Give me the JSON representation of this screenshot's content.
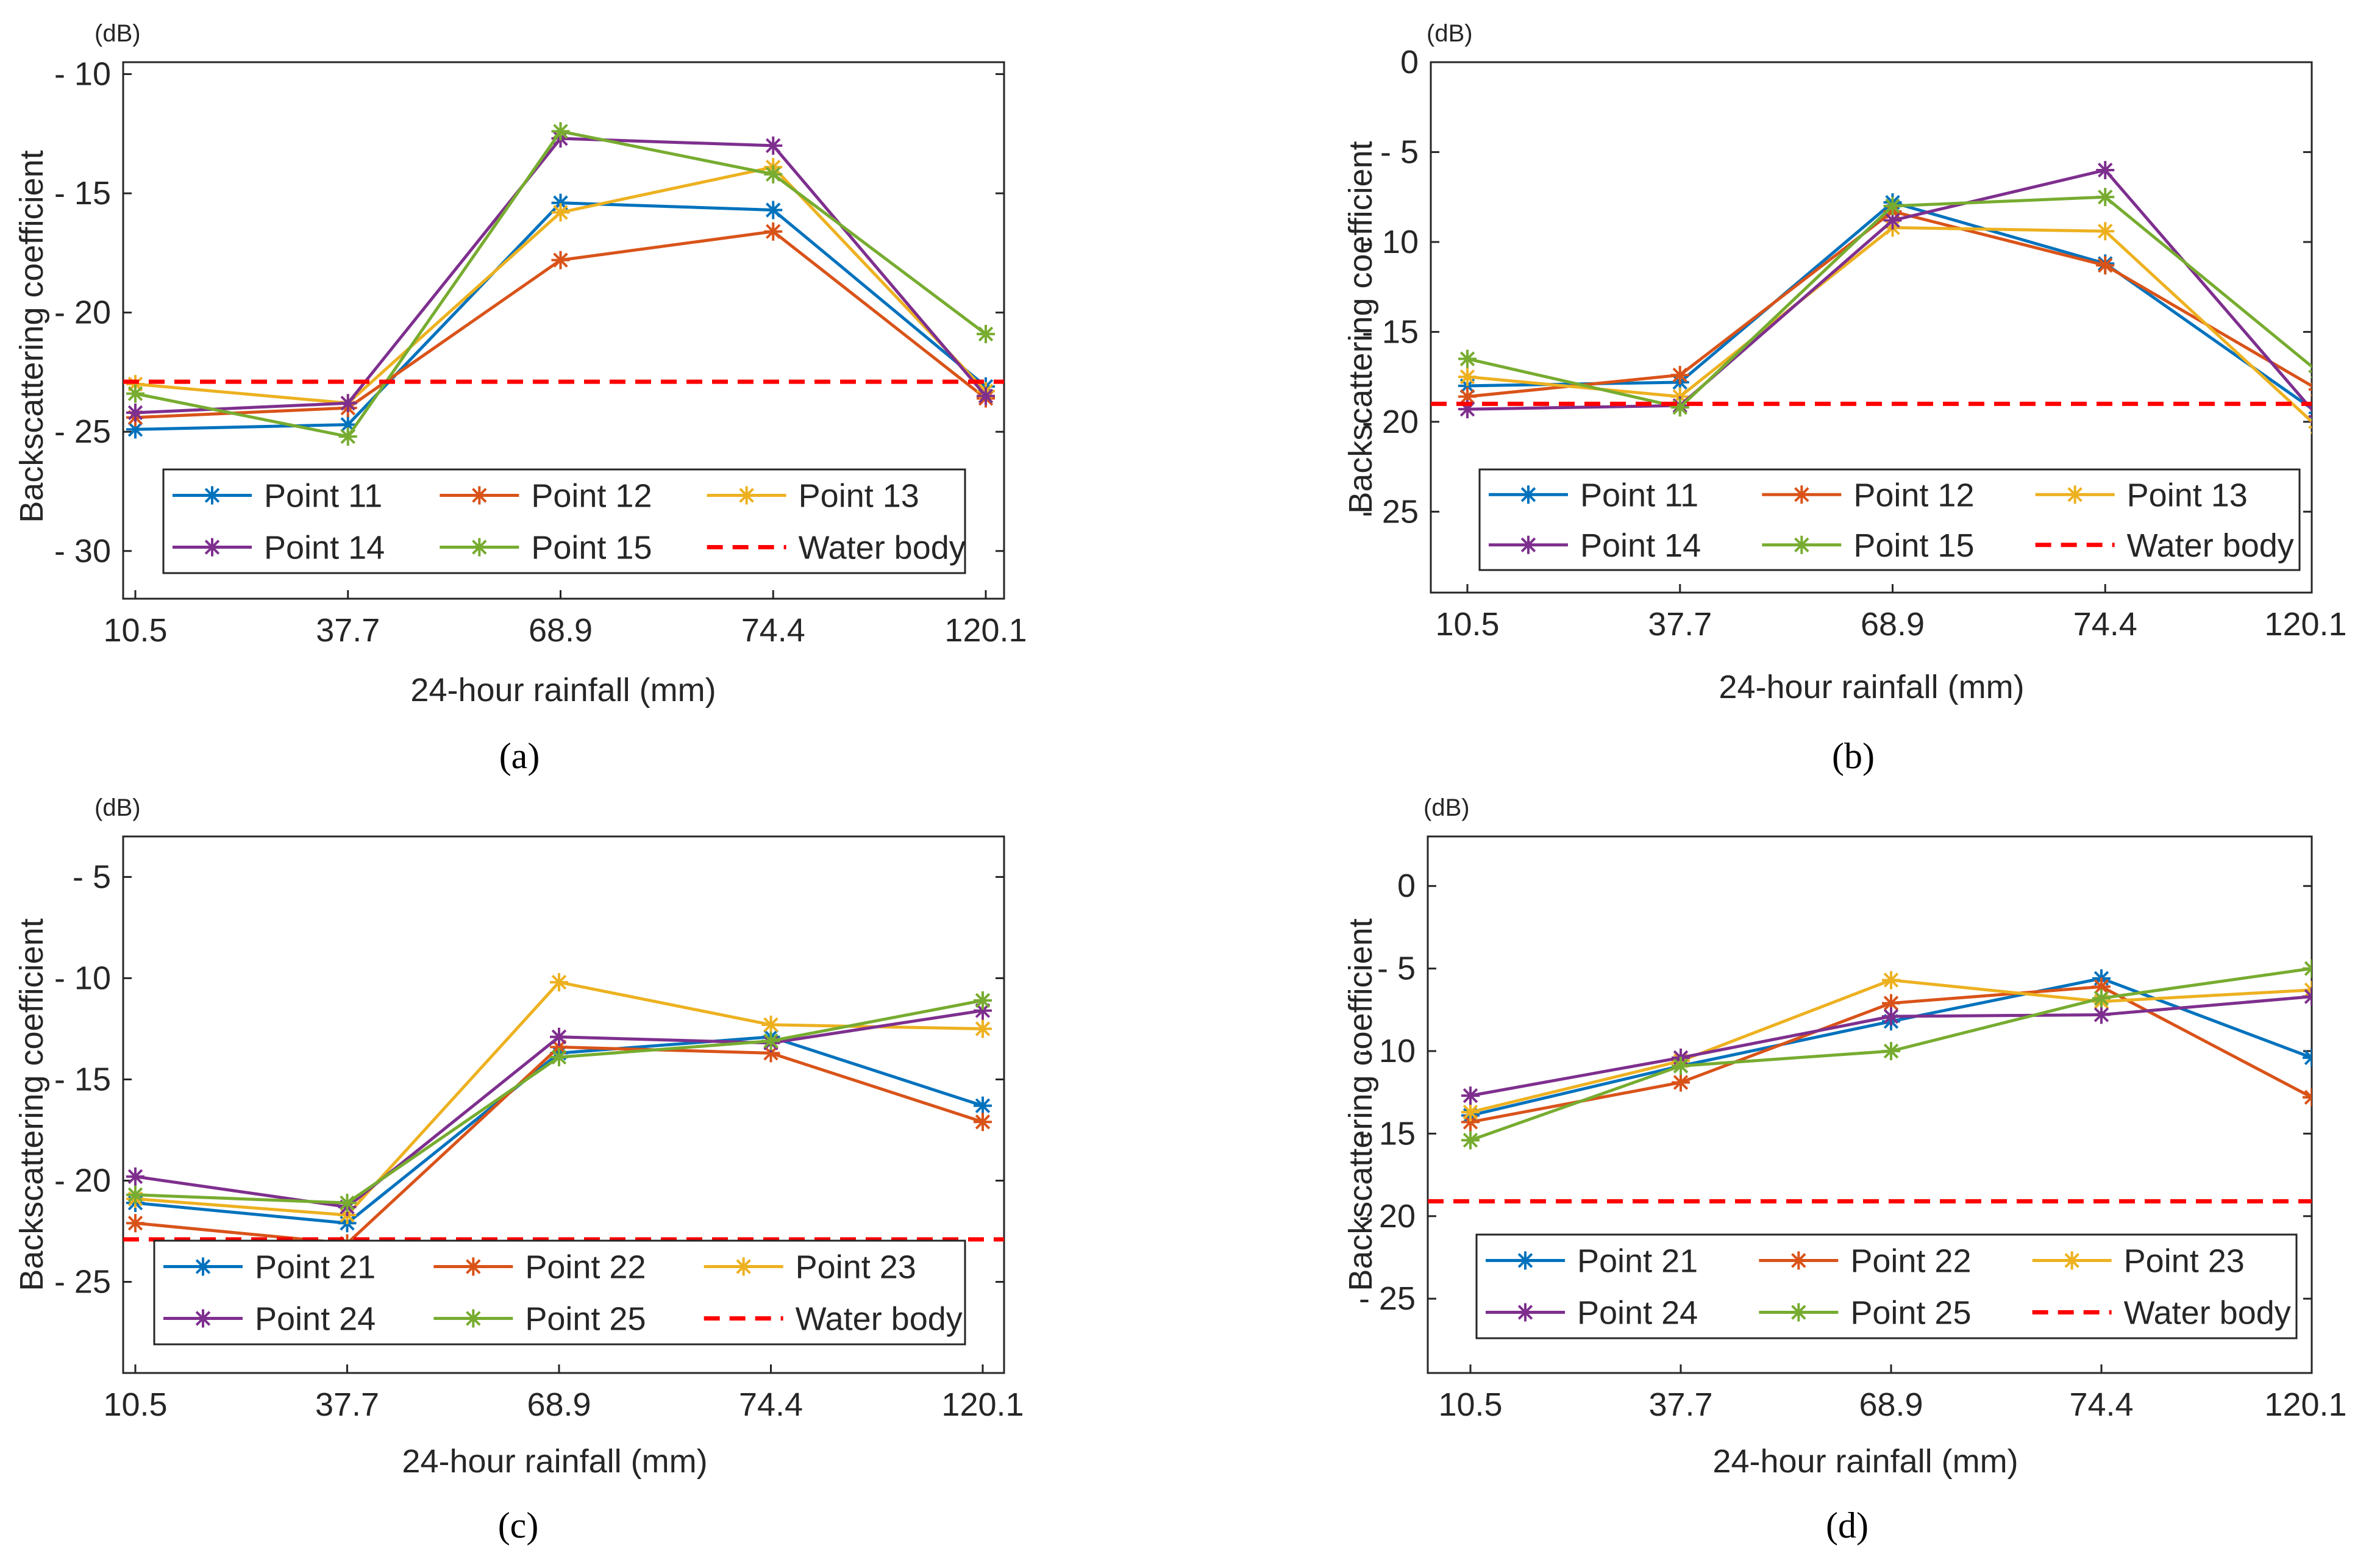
{
  "colors": {
    "blue": "#0072BD",
    "orange": "#D95319",
    "yellow": "#EDB120",
    "purple": "#7E2F8E",
    "green": "#77AC30",
    "water": "#FF0000"
  },
  "chart_data": [
    {
      "type": "line",
      "panel_label": "(a)",
      "unit_label": "(dB)",
      "title": "",
      "xlabel": "24-hour rainfall (mm)",
      "ylabel": "Backscattering coefficient",
      "categories": [
        "10.5",
        "37.7",
        "68.9",
        "74.4",
        "120.1"
      ],
      "ylim": [
        -32,
        -9.5
      ],
      "yticks": [
        -10,
        -15,
        -20,
        -25,
        -30
      ],
      "ytick_labels": [
        "- 10",
        "- 15",
        "- 20",
        "- 25",
        "- 30"
      ],
      "legend_position": "bottom",
      "series": [
        {
          "name": "Point 11",
          "color": "#0072BD",
          "values": [
            -24.9,
            -24.7,
            -15.4,
            -15.7,
            -23.1
          ]
        },
        {
          "name": "Point 12",
          "color": "#D95319",
          "values": [
            -24.4,
            -24.0,
            -17.8,
            -16.6,
            -23.6
          ]
        },
        {
          "name": "Point 13",
          "color": "#EDB120",
          "values": [
            -23.0,
            -23.8,
            -15.8,
            -13.9,
            -23.3
          ]
        },
        {
          "name": "Point 14",
          "color": "#7E2F8E",
          "values": [
            -24.2,
            -23.8,
            -12.7,
            -13.0,
            -23.5
          ]
        },
        {
          "name": "Point 15",
          "color": "#77AC30",
          "values": [
            -23.4,
            -25.2,
            -12.4,
            -14.2,
            -20.9
          ]
        },
        {
          "name": "Water body",
          "color": "#FF0000",
          "dashed": true,
          "values": [
            -22.9,
            -22.9,
            -22.9,
            -22.9,
            -22.9
          ]
        }
      ]
    },
    {
      "type": "line",
      "panel_label": "(b)",
      "unit_label": "(dB)",
      "title": "",
      "xlabel": "24-hour rainfall (mm)",
      "ylabel": "Backscattering coefficient",
      "categories": [
        "10.5",
        "37.7",
        "68.9",
        "74.4",
        "120.1"
      ],
      "ylim": [
        -29.5,
        0
      ],
      "yticks": [
        0,
        -5,
        -10,
        -15,
        -20,
        -25
      ],
      "ytick_labels": [
        "0",
        "- 5",
        "- 10",
        "- 15",
        "- 20",
        "- 25"
      ],
      "legend_position": "bottom",
      "series": [
        {
          "name": "Point 11",
          "color": "#0072BD",
          "values": [
            -18.0,
            -17.8,
            -7.8,
            -11.2,
            -19.5
          ]
        },
        {
          "name": "Point 12",
          "color": "#D95319",
          "values": [
            -18.6,
            -17.4,
            -8.3,
            -11.3,
            -18.2
          ]
        },
        {
          "name": "Point 13",
          "color": "#EDB120",
          "values": [
            -17.5,
            -18.6,
            -9.2,
            -9.4,
            -20.3
          ]
        },
        {
          "name": "Point 14",
          "color": "#7E2F8E",
          "values": [
            -19.3,
            -19.1,
            -8.8,
            -6.0,
            -19.7
          ]
        },
        {
          "name": "Point 15",
          "color": "#77AC30",
          "values": [
            -16.5,
            -19.2,
            -8.0,
            -7.5,
            -17.2
          ]
        },
        {
          "name": "Water body",
          "color": "#FF0000",
          "dashed": true,
          "values": [
            -19.0,
            -19.0,
            -19.0,
            -19.0,
            -19.0
          ]
        }
      ]
    },
    {
      "type": "line",
      "panel_label": "(c)",
      "unit_label": "(dB)",
      "title": "",
      "xlabel": "24-hour rainfall (mm)",
      "ylabel": "Backscattering coefficient",
      "categories": [
        "10.5",
        "37.7",
        "68.9",
        "74.4",
        "120.1"
      ],
      "ylim": [
        -29.5,
        -3
      ],
      "yticks": [
        -5,
        -10,
        -15,
        -20,
        -25
      ],
      "ytick_labels": [
        "- 5",
        "- 10",
        "- 15",
        "- 20",
        "- 25"
      ],
      "legend_position": "bottom",
      "series": [
        {
          "name": "Point 21",
          "color": "#0072BD",
          "values": [
            -21.1,
            -22.1,
            -13.7,
            -12.9,
            -16.3
          ]
        },
        {
          "name": "Point 22",
          "color": "#D95319",
          "values": [
            -22.1,
            -23.1,
            -13.4,
            -13.7,
            -17.1
          ]
        },
        {
          "name": "Point 23",
          "color": "#EDB120",
          "values": [
            -20.9,
            -21.7,
            -10.2,
            -12.3,
            -12.5
          ]
        },
        {
          "name": "Point 24",
          "color": "#7E2F8E",
          "values": [
            -19.8,
            -21.3,
            -12.9,
            -13.2,
            -11.6
          ]
        },
        {
          "name": "Point 25",
          "color": "#77AC30",
          "values": [
            -20.7,
            -21.1,
            -13.9,
            -13.1,
            -11.1
          ]
        },
        {
          "name": "Water body",
          "color": "#FF0000",
          "dashed": true,
          "values": [
            -22.9,
            -22.9,
            -22.9,
            -22.9,
            -22.9
          ]
        }
      ]
    },
    {
      "type": "line",
      "panel_label": "(d)",
      "unit_label": "(dB)",
      "title": "",
      "xlabel": "24-hour rainfall (mm)",
      "ylabel": "Backscattering coefficient",
      "categories": [
        "10.5",
        "37.7",
        "68.9",
        "74.4",
        "120.1"
      ],
      "ylim": [
        -29.5,
        3
      ],
      "yticks": [
        0,
        -5,
        -10,
        -15,
        -20,
        -25
      ],
      "ytick_labels": [
        "0",
        "- 5",
        "- 10",
        "- 15",
        "- 20",
        "- 25"
      ],
      "legend_position": "bottom",
      "series": [
        {
          "name": "Point 21",
          "color": "#0072BD",
          "values": [
            -13.9,
            -10.9,
            -8.2,
            -5.6,
            -10.4
          ]
        },
        {
          "name": "Point 22",
          "color": "#D95319",
          "values": [
            -14.3,
            -11.9,
            -7.1,
            -6.1,
            -12.8
          ]
        },
        {
          "name": "Point 23",
          "color": "#EDB120",
          "values": [
            -13.7,
            -10.6,
            -5.7,
            -7.0,
            -6.3
          ]
        },
        {
          "name": "Point 24",
          "color": "#7E2F8E",
          "values": [
            -12.7,
            -10.4,
            -7.9,
            -7.8,
            -6.7
          ]
        },
        {
          "name": "Point 25",
          "color": "#77AC30",
          "values": [
            -15.4,
            -10.9,
            -10.0,
            -6.8,
            -5.0
          ]
        },
        {
          "name": "Water body",
          "color": "#FF0000",
          "dashed": true,
          "values": [
            -19.1,
            -19.1,
            -19.1,
            -19.1,
            -19.1
          ]
        }
      ]
    }
  ]
}
